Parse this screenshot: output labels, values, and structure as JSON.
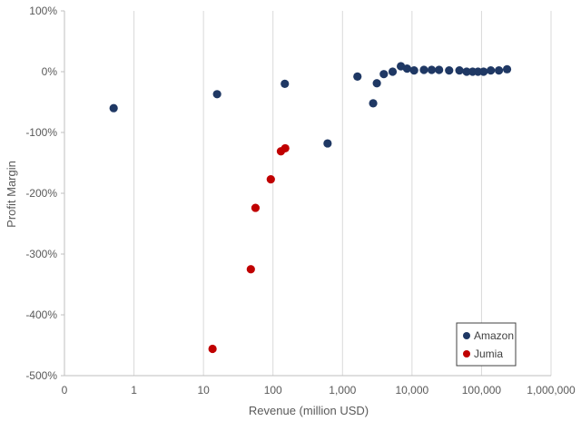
{
  "chart_data": {
    "type": "scatter",
    "title": "",
    "xlabel": "Revenue (million USD)",
    "ylabel": "Profit Margin",
    "xscale": "log",
    "xticks": [
      "0",
      "1",
      "10",
      "100",
      "1,000",
      "10,000",
      "100,000",
      "1,000,000"
    ],
    "yticks": [
      "100%",
      "0%",
      "-100%",
      "-200%",
      "-300%",
      "-400%",
      "-500%"
    ],
    "ylim": [
      -500,
      100
    ],
    "grid": "vertical",
    "legend_position": "bottom-right",
    "series": [
      {
        "name": "Amazon",
        "color": "#1f3864",
        "points": [
          [
            0.51,
            -60
          ],
          [
            15.7,
            -37
          ],
          [
            148,
            -20
          ],
          [
            610,
            -118
          ],
          [
            1640,
            -8
          ],
          [
            2760,
            -52
          ],
          [
            3120,
            -19
          ],
          [
            3930,
            -4
          ],
          [
            5260,
            0
          ],
          [
            6920,
            9
          ],
          [
            8490,
            5
          ],
          [
            10710,
            2
          ],
          [
            14840,
            3
          ],
          [
            19170,
            3
          ],
          [
            24510,
            3
          ],
          [
            34200,
            2
          ],
          [
            48080,
            2
          ],
          [
            61090,
            0
          ],
          [
            74450,
            0
          ],
          [
            88990,
            0
          ],
          [
            107010,
            0
          ],
          [
            135990,
            2
          ],
          [
            177870,
            2
          ],
          [
            232890,
            4
          ]
        ]
      },
      {
        "name": "Jumia",
        "color": "#c00000",
        "points": [
          [
            13.5,
            -456
          ],
          [
            48,
            -325
          ],
          [
            56,
            -224
          ],
          [
            93,
            -177
          ],
          [
            130,
            -131
          ],
          [
            150,
            -126
          ]
        ]
      }
    ]
  }
}
